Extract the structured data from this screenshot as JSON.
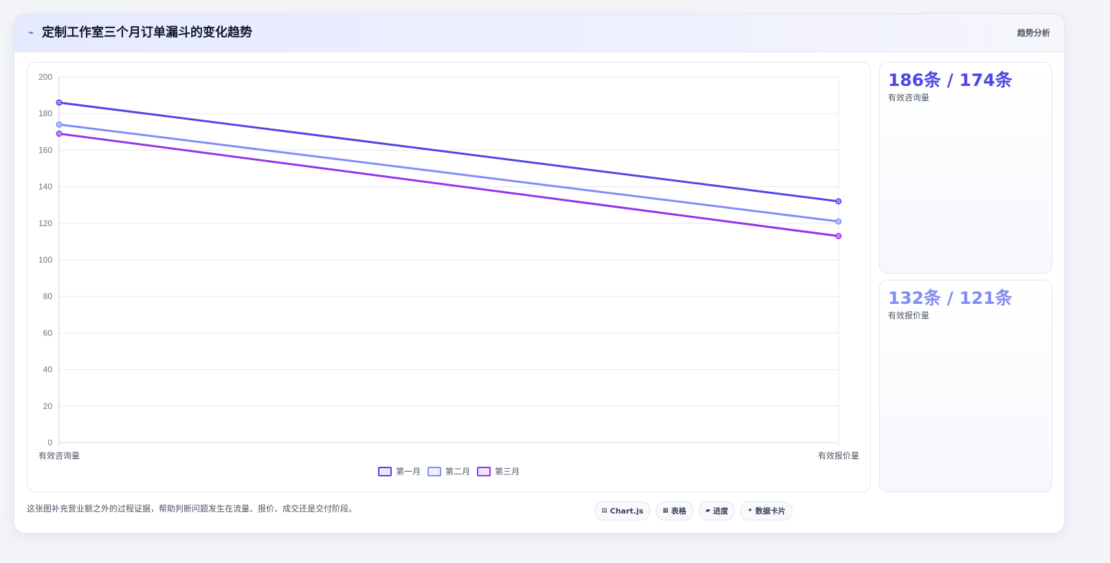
{
  "header": {
    "icon": "chart-line-icon",
    "title": "定制工作室三个月订单漏斗的变化趋势",
    "badge": "趋势分析"
  },
  "chart_data": {
    "type": "line",
    "title": "",
    "xlabel": "",
    "ylabel": "",
    "categories": [
      "有效咨询量",
      "有效报价量"
    ],
    "ylim": [
      0,
      200
    ],
    "yticks": [
      0,
      20,
      40,
      60,
      80,
      100,
      120,
      140,
      160,
      180,
      200
    ],
    "grid": true,
    "legend_position": "bottom",
    "series": [
      {
        "name": "第一月",
        "values": [
          186,
          132
        ],
        "color": "#4f46e5"
      },
      {
        "name": "第二月",
        "values": [
          174,
          121
        ],
        "color": "#818cf8"
      },
      {
        "name": "第三月",
        "values": [
          169,
          113
        ],
        "color": "#9333ea"
      }
    ]
  },
  "stats": [
    {
      "value": "186条 / 174条",
      "label": "有效咨询量",
      "color": "#4f46e5"
    },
    {
      "value": "132条 / 121条",
      "label": "有效报价量",
      "color": "#818cf8"
    }
  ],
  "footnote": "这张图补充营业额之外的过程证据，帮助判断问题发生在流量、报价、成交还是交付阶段。",
  "pills": [
    {
      "icon": "chart-icon",
      "glyph": "▤",
      "label": "Chart.js"
    },
    {
      "icon": "table-icon",
      "glyph": "▦",
      "label": "表格"
    },
    {
      "icon": "progress-icon",
      "glyph": "▰",
      "label": "进度"
    },
    {
      "icon": "card-icon",
      "glyph": "✦",
      "label": "数据卡片"
    }
  ]
}
